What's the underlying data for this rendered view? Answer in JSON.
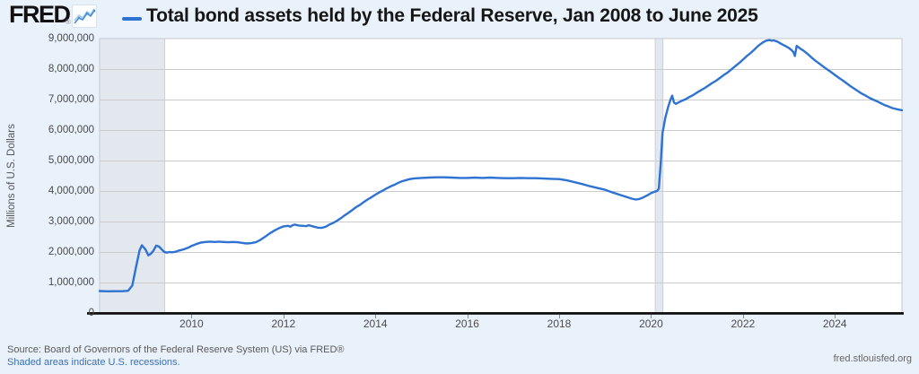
{
  "header": {
    "logo_text": "FRED",
    "logo_registered": "®",
    "title": "Total bond assets held by the Federal Reserve, Jan 2008 to June 2025"
  },
  "colors": {
    "background": "#e9f1fb",
    "plot_background": "#ffffff",
    "plot_border": "#c9c9c9",
    "grid": "#cccccc",
    "recession_fill": "#e3e7ee",
    "recession_edge": "#c3c8d2",
    "axis_black": "#111111",
    "line_blue": "#2e72d2",
    "tick_text": "#4d4d4d",
    "link_blue": "#3d6fb0"
  },
  "y_axis": {
    "label": "Millions of U.S. Dollars",
    "ticks": [
      "9,000,000",
      "8,000,000",
      "7,000,000",
      "6,000,000",
      "5,000,000",
      "4,000,000",
      "3,000,000",
      "2,000,000",
      "1,000,000",
      "0"
    ]
  },
  "x_axis": {
    "ticks": [
      "2010",
      "2012",
      "2014",
      "2016",
      "2018",
      "2020",
      "2022",
      "2024"
    ]
  },
  "footer": {
    "source": "Source: Board of Governors of the Federal Reserve System (US) via FRED®",
    "shaded_note": "Shaded areas indicate U.S. recessions.",
    "site": "fred.stlouisfed.org"
  },
  "chart_data": {
    "type": "line",
    "title": "Total bond assets held by the Federal Reserve, Jan 2008 to June 2025",
    "xlabel": "",
    "ylabel": "Millions of U.S. Dollars",
    "x_range": [
      2008.0,
      2025.46
    ],
    "ylim": [
      0,
      9000000
    ],
    "grid": "horizontal",
    "legend_position": "top-left-of-title",
    "recessions": [
      [
        2008.0,
        2009.417
      ],
      [
        2020.09,
        2020.26
      ]
    ],
    "series": [
      {
        "name": "Total bond assets",
        "color": "#2e72d2",
        "points": [
          [
            2008.0,
            720000
          ],
          [
            2008.17,
            712000
          ],
          [
            2008.33,
            716000
          ],
          [
            2008.5,
            714000
          ],
          [
            2008.62,
            730000
          ],
          [
            2008.71,
            900000
          ],
          [
            2008.79,
            1500000
          ],
          [
            2008.87,
            2050000
          ],
          [
            2008.92,
            2220000
          ],
          [
            2009.0,
            2080000
          ],
          [
            2009.06,
            1890000
          ],
          [
            2009.12,
            1950000
          ],
          [
            2009.17,
            2040000
          ],
          [
            2009.23,
            2210000
          ],
          [
            2009.29,
            2180000
          ],
          [
            2009.33,
            2120000
          ],
          [
            2009.4,
            2010000
          ],
          [
            2009.46,
            1980000
          ],
          [
            2009.52,
            2000000
          ],
          [
            2009.58,
            1990000
          ],
          [
            2009.65,
            2010000
          ],
          [
            2009.71,
            2040000
          ],
          [
            2009.79,
            2070000
          ],
          [
            2009.87,
            2110000
          ],
          [
            2009.94,
            2150000
          ],
          [
            2010.0,
            2200000
          ],
          [
            2010.1,
            2260000
          ],
          [
            2010.2,
            2310000
          ],
          [
            2010.3,
            2330000
          ],
          [
            2010.4,
            2340000
          ],
          [
            2010.5,
            2330000
          ],
          [
            2010.6,
            2340000
          ],
          [
            2010.7,
            2330000
          ],
          [
            2010.8,
            2320000
          ],
          [
            2010.9,
            2330000
          ],
          [
            2011.0,
            2320000
          ],
          [
            2011.1,
            2300000
          ],
          [
            2011.2,
            2280000
          ],
          [
            2011.3,
            2290000
          ],
          [
            2011.4,
            2320000
          ],
          [
            2011.5,
            2400000
          ],
          [
            2011.6,
            2500000
          ],
          [
            2011.7,
            2610000
          ],
          [
            2011.8,
            2700000
          ],
          [
            2011.9,
            2780000
          ],
          [
            2012.0,
            2840000
          ],
          [
            2012.1,
            2860000
          ],
          [
            2012.15,
            2830000
          ],
          [
            2012.2,
            2880000
          ],
          [
            2012.25,
            2900000
          ],
          [
            2012.33,
            2870000
          ],
          [
            2012.42,
            2860000
          ],
          [
            2012.5,
            2850000
          ],
          [
            2012.55,
            2880000
          ],
          [
            2012.6,
            2860000
          ],
          [
            2012.67,
            2830000
          ],
          [
            2012.75,
            2800000
          ],
          [
            2012.83,
            2790000
          ],
          [
            2012.92,
            2830000
          ],
          [
            2013.0,
            2900000
          ],
          [
            2013.08,
            2950000
          ],
          [
            2013.17,
            3030000
          ],
          [
            2013.25,
            3110000
          ],
          [
            2013.33,
            3200000
          ],
          [
            2013.42,
            3290000
          ],
          [
            2013.5,
            3380000
          ],
          [
            2013.58,
            3470000
          ],
          [
            2013.67,
            3550000
          ],
          [
            2013.75,
            3640000
          ],
          [
            2013.83,
            3720000
          ],
          [
            2013.92,
            3800000
          ],
          [
            2014.0,
            3880000
          ],
          [
            2014.08,
            3950000
          ],
          [
            2014.17,
            4020000
          ],
          [
            2014.25,
            4090000
          ],
          [
            2014.33,
            4150000
          ],
          [
            2014.42,
            4210000
          ],
          [
            2014.5,
            4270000
          ],
          [
            2014.58,
            4320000
          ],
          [
            2014.67,
            4360000
          ],
          [
            2014.75,
            4390000
          ],
          [
            2014.83,
            4410000
          ],
          [
            2014.92,
            4420000
          ],
          [
            2015.0,
            4430000
          ],
          [
            2015.17,
            4440000
          ],
          [
            2015.33,
            4450000
          ],
          [
            2015.5,
            4450000
          ],
          [
            2015.67,
            4440000
          ],
          [
            2015.83,
            4430000
          ],
          [
            2016.0,
            4430000
          ],
          [
            2016.17,
            4440000
          ],
          [
            2016.33,
            4430000
          ],
          [
            2016.5,
            4440000
          ],
          [
            2016.67,
            4430000
          ],
          [
            2016.83,
            4420000
          ],
          [
            2017.0,
            4420000
          ],
          [
            2017.17,
            4430000
          ],
          [
            2017.33,
            4420000
          ],
          [
            2017.5,
            4420000
          ],
          [
            2017.67,
            4410000
          ],
          [
            2017.83,
            4400000
          ],
          [
            2018.0,
            4390000
          ],
          [
            2018.17,
            4350000
          ],
          [
            2018.33,
            4290000
          ],
          [
            2018.5,
            4230000
          ],
          [
            2018.67,
            4160000
          ],
          [
            2018.83,
            4100000
          ],
          [
            2019.0,
            4040000
          ],
          [
            2019.17,
            3950000
          ],
          [
            2019.33,
            3870000
          ],
          [
            2019.5,
            3790000
          ],
          [
            2019.58,
            3750000
          ],
          [
            2019.67,
            3720000
          ],
          [
            2019.75,
            3740000
          ],
          [
            2019.83,
            3790000
          ],
          [
            2019.92,
            3860000
          ],
          [
            2020.0,
            3930000
          ],
          [
            2020.08,
            3980000
          ],
          [
            2020.13,
            4000000
          ],
          [
            2020.17,
            4080000
          ],
          [
            2020.21,
            4900000
          ],
          [
            2020.25,
            5900000
          ],
          [
            2020.31,
            6400000
          ],
          [
            2020.37,
            6750000
          ],
          [
            2020.42,
            6980000
          ],
          [
            2020.46,
            7130000
          ],
          [
            2020.5,
            6900000
          ],
          [
            2020.54,
            6860000
          ],
          [
            2020.58,
            6890000
          ],
          [
            2020.63,
            6930000
          ],
          [
            2020.67,
            6960000
          ],
          [
            2020.75,
            7010000
          ],
          [
            2020.83,
            7080000
          ],
          [
            2020.92,
            7150000
          ],
          [
            2021.0,
            7230000
          ],
          [
            2021.08,
            7300000
          ],
          [
            2021.17,
            7380000
          ],
          [
            2021.25,
            7460000
          ],
          [
            2021.33,
            7540000
          ],
          [
            2021.42,
            7620000
          ],
          [
            2021.5,
            7710000
          ],
          [
            2021.58,
            7800000
          ],
          [
            2021.67,
            7890000
          ],
          [
            2021.75,
            7990000
          ],
          [
            2021.83,
            8090000
          ],
          [
            2021.92,
            8200000
          ],
          [
            2022.0,
            8310000
          ],
          [
            2022.08,
            8420000
          ],
          [
            2022.17,
            8530000
          ],
          [
            2022.25,
            8640000
          ],
          [
            2022.33,
            8760000
          ],
          [
            2022.42,
            8860000
          ],
          [
            2022.5,
            8930000
          ],
          [
            2022.58,
            8950000
          ],
          [
            2022.63,
            8930000
          ],
          [
            2022.67,
            8940000
          ],
          [
            2022.75,
            8900000
          ],
          [
            2022.83,
            8830000
          ],
          [
            2022.92,
            8760000
          ],
          [
            2023.0,
            8690000
          ],
          [
            2023.06,
            8620000
          ],
          [
            2023.1,
            8550000
          ],
          [
            2023.13,
            8430000
          ],
          [
            2023.17,
            8760000
          ],
          [
            2023.25,
            8670000
          ],
          [
            2023.33,
            8590000
          ],
          [
            2023.42,
            8480000
          ],
          [
            2023.5,
            8370000
          ],
          [
            2023.58,
            8270000
          ],
          [
            2023.67,
            8170000
          ],
          [
            2023.75,
            8080000
          ],
          [
            2023.83,
            7990000
          ],
          [
            2023.92,
            7900000
          ],
          [
            2024.0,
            7810000
          ],
          [
            2024.08,
            7720000
          ],
          [
            2024.17,
            7630000
          ],
          [
            2024.25,
            7540000
          ],
          [
            2024.33,
            7450000
          ],
          [
            2024.42,
            7360000
          ],
          [
            2024.5,
            7280000
          ],
          [
            2024.58,
            7200000
          ],
          [
            2024.67,
            7130000
          ],
          [
            2024.75,
            7060000
          ],
          [
            2024.83,
            7000000
          ],
          [
            2024.92,
            6940000
          ],
          [
            2025.0,
            6880000
          ],
          [
            2025.08,
            6820000
          ],
          [
            2025.17,
            6770000
          ],
          [
            2025.25,
            6720000
          ],
          [
            2025.33,
            6690000
          ],
          [
            2025.42,
            6660000
          ],
          [
            2025.46,
            6650000
          ]
        ]
      }
    ]
  }
}
